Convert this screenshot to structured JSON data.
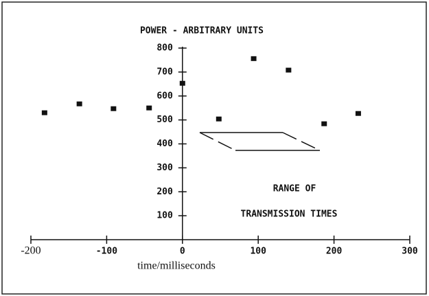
{
  "chart_data": {
    "type": "scatter",
    "title": "POWER - ARBITRARY UNITS",
    "x_label": "time/milliseconds",
    "annotations": [
      "RANGE OF",
      "TRANSMISSION TIMES"
    ],
    "color": "#111111",
    "series": [
      {
        "x": [
          -182,
          -136,
          -91,
          -44,
          0,
          48,
          94,
          140,
          187,
          232
        ],
        "values": [
          530,
          567,
          547,
          550,
          653,
          504,
          756,
          708,
          484,
          527
        ]
      }
    ],
    "xlim": [
      -200,
      300
    ],
    "xticks": [
      -200,
      -100,
      0,
      100,
      200,
      300
    ],
    "ylim": [
      0,
      800
    ],
    "yticks": [
      100,
      200,
      300,
      400,
      500,
      600,
      700,
      800
    ]
  }
}
